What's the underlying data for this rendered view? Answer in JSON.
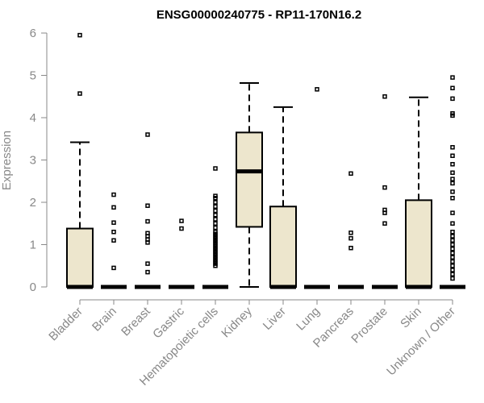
{
  "chart_data": {
    "type": "boxplot",
    "title": "ENSG00000240775 - RP11-170N16.2",
    "ylabel": "Expression",
    "ylim": [
      0,
      6
    ],
    "yticks": [
      0,
      1,
      2,
      3,
      4,
      5,
      6
    ],
    "box_color": "#ede6cd",
    "categories": [
      "Bladder",
      "Brain",
      "Breast",
      "Gastric",
      "Hematopoietic cells",
      "Kidney",
      "Liver",
      "Lung",
      "Pancreas",
      "Prostate",
      "Skin",
      "Unknown / Other"
    ],
    "boxes": [
      {
        "name": "Bladder",
        "q1": 0,
        "median": 0,
        "q3": 1.38,
        "whisker_low": 0,
        "whisker_high": 3.42,
        "outliers": [
          4.57,
          5.95
        ]
      },
      {
        "name": "Brain",
        "q1": 0,
        "median": 0,
        "q3": 0,
        "whisker_low": 0,
        "whisker_high": 0,
        "outliers": [
          0.45,
          1.1,
          1.3,
          1.52,
          1.88,
          2.18
        ]
      },
      {
        "name": "Breast",
        "q1": 0,
        "median": 0,
        "q3": 0,
        "whisker_low": 0,
        "whisker_high": 0,
        "outliers": [
          0.35,
          0.55,
          1.05,
          1.12,
          1.2,
          1.27,
          1.55,
          1.92,
          3.6
        ]
      },
      {
        "name": "Gastric",
        "q1": 0,
        "median": 0,
        "q3": 0,
        "whisker_low": 0,
        "whisker_high": 0,
        "outliers": [
          1.38,
          1.56
        ]
      },
      {
        "name": "Hematopoietic cells",
        "q1": 0,
        "median": 0,
        "q3": 0,
        "whisker_low": 0,
        "whisker_high": 0,
        "outliers": [
          0.5,
          0.55,
          0.6,
          0.65,
          0.7,
          0.75,
          0.8,
          0.85,
          0.9,
          0.95,
          1.0,
          1.05,
          1.1,
          1.15,
          1.2,
          1.25,
          1.3,
          1.4,
          1.5,
          1.6,
          1.7,
          1.8,
          1.9,
          2.0,
          2.1,
          2.15,
          2.8
        ]
      },
      {
        "name": "Kidney",
        "q1": 1.42,
        "median": 2.73,
        "q3": 3.65,
        "whisker_low": 0,
        "whisker_high": 4.82,
        "outliers": []
      },
      {
        "name": "Liver",
        "q1": 0,
        "median": 0,
        "q3": 1.9,
        "whisker_low": 0,
        "whisker_high": 4.25,
        "outliers": []
      },
      {
        "name": "Lung",
        "q1": 0,
        "median": 0,
        "q3": 0,
        "whisker_low": 0,
        "whisker_high": 0,
        "outliers": [
          4.67
        ]
      },
      {
        "name": "Pancreas",
        "q1": 0,
        "median": 0,
        "q3": 0,
        "whisker_low": 0,
        "whisker_high": 0,
        "outliers": [
          0.92,
          1.15,
          1.28,
          2.68
        ]
      },
      {
        "name": "Prostate",
        "q1": 0,
        "median": 0,
        "q3": 0,
        "whisker_low": 0,
        "whisker_high": 0,
        "outliers": [
          1.5,
          1.75,
          1.82,
          2.35,
          4.5
        ]
      },
      {
        "name": "Skin",
        "q1": 0,
        "median": 0,
        "q3": 2.05,
        "whisker_low": 0,
        "whisker_high": 4.48,
        "outliers": []
      },
      {
        "name": "Unknown / Other",
        "q1": 0,
        "median": 0,
        "q3": 0,
        "whisker_low": 0,
        "whisker_high": 0,
        "outliers": [
          0.2,
          0.3,
          0.4,
          0.5,
          0.6,
          0.7,
          0.8,
          0.9,
          1.0,
          1.1,
          1.2,
          1.3,
          1.5,
          1.75,
          2.1,
          2.25,
          2.45,
          2.55,
          2.7,
          2.9,
          3.1,
          3.3,
          4.05,
          4.1,
          4.45,
          4.7,
          4.95
        ]
      }
    ]
  }
}
